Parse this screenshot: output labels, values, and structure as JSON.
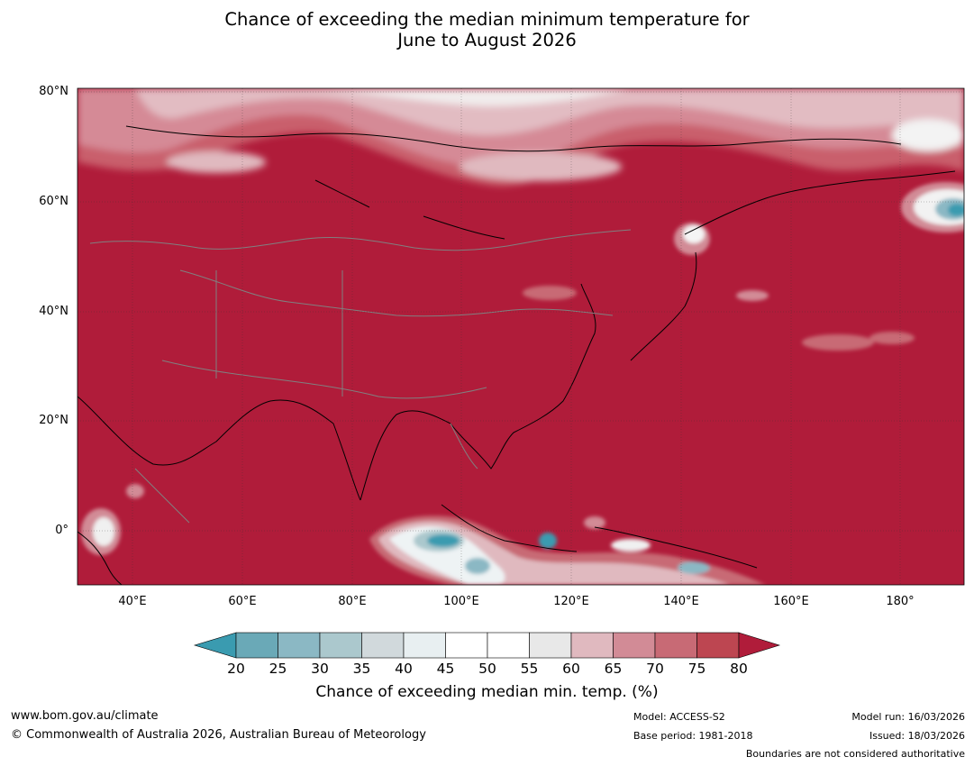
{
  "title": {
    "line1": "Chance of exceeding the median minimum temperature for",
    "line2": "June to August 2026"
  },
  "map": {
    "lat_labels": [
      "80°N",
      "60°N",
      "40°N",
      "20°N",
      "0°"
    ],
    "lon_labels": [
      "40°E",
      "60°E",
      "80°E",
      "100°E",
      "120°E",
      "140°E",
      "160°E",
      "180°"
    ],
    "background_color": "#b01c3a"
  },
  "colorbar": {
    "ticks": [
      "20",
      "25",
      "30",
      "35",
      "40",
      "45",
      "50",
      "55",
      "60",
      "65",
      "70",
      "75",
      "80"
    ],
    "colors": [
      "#6aa9b7",
      "#8bb8c4",
      "#abc8cd",
      "#d1d9dc",
      "#e8eff1",
      "#ffffff",
      "#ffffff",
      "#e8e8e8",
      "#e0b9bf",
      "#d28b96",
      "#c86a75",
      "#bd4651"
    ],
    "low_extend_color": "#3a9bb0",
    "high_extend_color": "#b01c3a",
    "label": "Chance of exceeding median min. temp. (%)"
  },
  "footer": {
    "website": "www.bom.gov.au/climate",
    "copyright": "© Commonwealth of Australia 2026, Australian Bureau of Meteorology",
    "model": "Model: ACCESS-S2",
    "base_period": "Base period: 1981-2018",
    "model_run": "Model run: 16/03/2026",
    "issued": "Issued: 18/03/2026",
    "disclaimer": "Boundaries are not considered authoritative"
  }
}
